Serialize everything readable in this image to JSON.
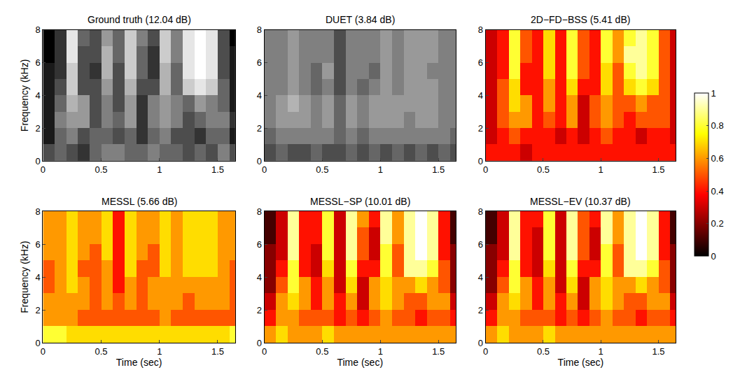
{
  "chart_data": [
    {
      "type": "heatmap",
      "title": "Ground truth (12.04 dB)",
      "ylabel": "Frequency (kHz)",
      "color": "gray",
      "x": [
        0.05,
        0.15,
        0.25,
        0.35,
        0.45,
        0.55,
        0.65,
        0.75,
        0.85,
        0.95,
        1.05,
        1.15,
        1.25,
        1.35,
        1.45,
        1.55,
        1.65
      ],
      "y": [
        0.5,
        1.5,
        2.5,
        3.5,
        4.5,
        5.5,
        6.5,
        7.5
      ],
      "z": [
        [
          0.3,
          0.4,
          0.3,
          0.2,
          0.4,
          0.5,
          0.5,
          0.4,
          0.4,
          0.5,
          0.4,
          0.4,
          0.3,
          0.4,
          0.3,
          0.5,
          0.3
        ],
        [
          0.1,
          0.4,
          0.5,
          0.3,
          0.4,
          0.4,
          0.3,
          0.4,
          0.2,
          0.4,
          0.5,
          0.3,
          0.3,
          0.2,
          0.4,
          0.4,
          0.1
        ],
        [
          0.1,
          0.5,
          0.6,
          0.6,
          0.3,
          0.5,
          0.4,
          0.6,
          0.2,
          0.5,
          0.6,
          0.5,
          0.3,
          0.4,
          0.5,
          0.5,
          0.2
        ],
        [
          0.1,
          0.4,
          0.7,
          0.6,
          0.3,
          0.5,
          0.3,
          0.6,
          0.2,
          0.5,
          0.6,
          0.5,
          0.4,
          0.6,
          0.5,
          0.4,
          0.1
        ],
        [
          0.1,
          0.3,
          0.8,
          0.3,
          0.3,
          0.6,
          0.3,
          0.7,
          0.3,
          0.3,
          0.7,
          0.4,
          0.8,
          0.9,
          0.8,
          0.4,
          0.1
        ],
        [
          0.1,
          0.2,
          0.8,
          0.3,
          0.2,
          0.7,
          0.3,
          0.8,
          0.4,
          0.2,
          0.7,
          0.4,
          0.9,
          1.0,
          0.9,
          0.3,
          0.1
        ],
        [
          0.0,
          0.2,
          0.9,
          0.3,
          0.3,
          0.7,
          0.4,
          0.8,
          0.4,
          0.2,
          0.8,
          0.5,
          0.9,
          1.0,
          0.9,
          0.3,
          0.1
        ],
        [
          0.0,
          0.2,
          0.9,
          0.4,
          0.3,
          0.6,
          0.4,
          0.8,
          0.5,
          0.3,
          0.8,
          0.5,
          0.9,
          1.0,
          0.9,
          0.3,
          0.0
        ]
      ],
      "zlim": [
        0,
        1
      ],
      "xlim": [
        0,
        1.65
      ],
      "xticks": [
        0,
        0.5,
        1,
        1.5
      ],
      "ylim": [
        0,
        8
      ],
      "yticks": [
        0,
        2,
        4,
        6,
        8
      ]
    },
    {
      "type": "heatmap",
      "title": "DUET (3.84 dB)",
      "color": "gray",
      "x": [
        0.05,
        0.15,
        0.25,
        0.35,
        0.45,
        0.55,
        0.65,
        0.75,
        0.85,
        0.95,
        1.05,
        1.15,
        1.25,
        1.35,
        1.45,
        1.55,
        1.65
      ],
      "y": [
        0.5,
        1.5,
        2.5,
        3.5,
        4.5,
        5.5,
        6.5,
        7.5
      ],
      "z": [
        [
          0.3,
          0.4,
          0.3,
          0.3,
          0.4,
          0.3,
          0.3,
          0.4,
          0.3,
          0.4,
          0.3,
          0.4,
          0.3,
          0.4,
          0.3,
          0.4,
          0.3
        ],
        [
          0.4,
          0.5,
          0.5,
          0.5,
          0.5,
          0.5,
          0.4,
          0.5,
          0.4,
          0.5,
          0.5,
          0.5,
          0.5,
          0.5,
          0.5,
          0.5,
          0.4
        ],
        [
          0.5,
          0.6,
          0.6,
          0.6,
          0.5,
          0.6,
          0.4,
          0.6,
          0.5,
          0.6,
          0.6,
          0.6,
          0.5,
          0.6,
          0.6,
          0.5,
          0.5
        ],
        [
          0.5,
          0.6,
          0.7,
          0.6,
          0.5,
          0.6,
          0.4,
          0.6,
          0.5,
          0.6,
          0.6,
          0.6,
          0.6,
          0.6,
          0.6,
          0.5,
          0.5
        ],
        [
          0.5,
          0.5,
          0.6,
          0.5,
          0.4,
          0.5,
          0.3,
          0.5,
          0.4,
          0.5,
          0.6,
          0.5,
          0.6,
          0.6,
          0.6,
          0.5,
          0.5
        ],
        [
          0.5,
          0.5,
          0.6,
          0.5,
          0.4,
          0.6,
          0.3,
          0.5,
          0.5,
          0.4,
          0.6,
          0.5,
          0.6,
          0.6,
          0.5,
          0.5,
          0.5
        ],
        [
          0.5,
          0.5,
          0.6,
          0.5,
          0.5,
          0.5,
          0.3,
          0.5,
          0.5,
          0.5,
          0.6,
          0.5,
          0.6,
          0.6,
          0.6,
          0.5,
          0.5
        ],
        [
          0.5,
          0.5,
          0.6,
          0.5,
          0.5,
          0.5,
          0.3,
          0.5,
          0.5,
          0.5,
          0.6,
          0.5,
          0.6,
          0.6,
          0.6,
          0.5,
          0.5
        ]
      ],
      "zlim": [
        0,
        1
      ],
      "xlim": [
        0,
        1.65
      ],
      "xticks": [
        0,
        0.5,
        1,
        1.5
      ],
      "ylim": [
        0,
        8
      ],
      "yticks": [
        0,
        2,
        4,
        6,
        8
      ]
    },
    {
      "type": "heatmap",
      "title": "2D−FD−BSS (5.41 dB)",
      "color": "hot",
      "x": [
        0.05,
        0.15,
        0.25,
        0.35,
        0.45,
        0.55,
        0.65,
        0.75,
        0.85,
        0.95,
        1.05,
        1.15,
        1.25,
        1.35,
        1.45,
        1.55,
        1.65
      ],
      "y": [
        0.5,
        1.5,
        2.5,
        3.5,
        4.5,
        5.5,
        6.5,
        7.5
      ],
      "z": [
        [
          0.4,
          0.4,
          0.4,
          0.3,
          0.4,
          0.4,
          0.4,
          0.4,
          0.4,
          0.4,
          0.4,
          0.4,
          0.4,
          0.4,
          0.4,
          0.4,
          0.4
        ],
        [
          0.3,
          0.4,
          0.5,
          0.4,
          0.4,
          0.4,
          0.3,
          0.4,
          0.3,
          0.4,
          0.5,
          0.4,
          0.4,
          0.3,
          0.4,
          0.4,
          0.3
        ],
        [
          0.3,
          0.5,
          0.6,
          0.6,
          0.4,
          0.5,
          0.4,
          0.6,
          0.3,
          0.5,
          0.6,
          0.5,
          0.4,
          0.5,
          0.5,
          0.5,
          0.3
        ],
        [
          0.3,
          0.5,
          0.7,
          0.6,
          0.4,
          0.6,
          0.4,
          0.6,
          0.3,
          0.5,
          0.6,
          0.5,
          0.5,
          0.6,
          0.5,
          0.5,
          0.3
        ],
        [
          0.3,
          0.5,
          0.7,
          0.4,
          0.4,
          0.6,
          0.4,
          0.7,
          0.4,
          0.4,
          0.7,
          0.5,
          0.7,
          0.8,
          0.7,
          0.5,
          0.3
        ],
        [
          0.3,
          0.4,
          0.8,
          0.4,
          0.4,
          0.7,
          0.4,
          0.8,
          0.5,
          0.4,
          0.7,
          0.5,
          0.8,
          0.9,
          0.8,
          0.5,
          0.3
        ],
        [
          0.3,
          0.4,
          0.8,
          0.5,
          0.4,
          0.7,
          0.4,
          0.8,
          0.5,
          0.4,
          0.8,
          0.6,
          0.9,
          0.9,
          0.8,
          0.5,
          0.3
        ],
        [
          0.3,
          0.4,
          0.8,
          0.5,
          0.4,
          0.7,
          0.4,
          0.8,
          0.5,
          0.4,
          0.8,
          0.6,
          0.8,
          0.9,
          0.8,
          0.5,
          0.3
        ]
      ],
      "zlim": [
        0,
        1
      ],
      "colorbar_ticks": [
        0,
        0.2,
        0.4,
        0.6,
        0.8,
        1
      ],
      "xlim": [
        0,
        1.65
      ],
      "xticks": [
        0,
        0.5,
        1,
        1.5
      ],
      "ylim": [
        0,
        8
      ],
      "yticks": [
        0,
        2,
        4,
        6,
        8
      ]
    },
    {
      "type": "heatmap",
      "title": "MESSL (5.66 dB)",
      "ylabel": "Frequency (kHz)",
      "xlabel": "Time (sec)",
      "color": "hot",
      "x": [
        0.05,
        0.15,
        0.25,
        0.35,
        0.45,
        0.55,
        0.65,
        0.75,
        0.85,
        0.95,
        1.05,
        1.15,
        1.25,
        1.35,
        1.45,
        1.55,
        1.65
      ],
      "y": [
        0.5,
        1.5,
        2.5,
        3.5,
        4.5,
        5.5,
        6.5,
        7.5
      ],
      "z": [
        [
          0.8,
          0.8,
          0.7,
          0.7,
          0.7,
          0.7,
          0.7,
          0.7,
          0.7,
          0.7,
          0.7,
          0.7,
          0.7,
          0.7,
          0.7,
          0.7,
          0.8
        ],
        [
          0.6,
          0.6,
          0.6,
          0.5,
          0.5,
          0.5,
          0.5,
          0.5,
          0.5,
          0.5,
          0.6,
          0.5,
          0.5,
          0.5,
          0.5,
          0.5,
          0.5
        ],
        [
          0.6,
          0.6,
          0.6,
          0.6,
          0.5,
          0.6,
          0.5,
          0.6,
          0.5,
          0.6,
          0.6,
          0.6,
          0.5,
          0.6,
          0.6,
          0.6,
          0.5
        ],
        [
          0.5,
          0.6,
          0.7,
          0.6,
          0.5,
          0.6,
          0.4,
          0.6,
          0.5,
          0.6,
          0.6,
          0.6,
          0.6,
          0.6,
          0.6,
          0.6,
          0.5
        ],
        [
          0.5,
          0.6,
          0.7,
          0.5,
          0.5,
          0.6,
          0.4,
          0.7,
          0.5,
          0.5,
          0.7,
          0.6,
          0.7,
          0.7,
          0.7,
          0.6,
          0.5
        ],
        [
          0.6,
          0.6,
          0.7,
          0.6,
          0.5,
          0.7,
          0.4,
          0.7,
          0.6,
          0.5,
          0.7,
          0.6,
          0.7,
          0.7,
          0.7,
          0.6,
          0.6
        ],
        [
          0.6,
          0.6,
          0.7,
          0.6,
          0.6,
          0.7,
          0.4,
          0.7,
          0.6,
          0.6,
          0.7,
          0.6,
          0.7,
          0.7,
          0.7,
          0.6,
          0.6
        ],
        [
          0.6,
          0.6,
          0.7,
          0.6,
          0.6,
          0.7,
          0.4,
          0.7,
          0.6,
          0.6,
          0.7,
          0.6,
          0.7,
          0.7,
          0.7,
          0.6,
          0.6
        ]
      ],
      "zlim": [
        0,
        1
      ],
      "xlim": [
        0,
        1.65
      ],
      "xticks": [
        0,
        0.5,
        1,
        1.5
      ],
      "ylim": [
        0,
        8
      ],
      "yticks": [
        0,
        2,
        4,
        6,
        8
      ]
    },
    {
      "type": "heatmap",
      "title": "MESSL−SP (10.01 dB)",
      "xlabel": "Time (sec)",
      "color": "hot",
      "x": [
        0.05,
        0.15,
        0.25,
        0.35,
        0.45,
        0.55,
        0.65,
        0.75,
        0.85,
        0.95,
        1.05,
        1.15,
        1.25,
        1.35,
        1.45,
        1.55,
        1.65
      ],
      "y": [
        0.5,
        1.5,
        2.5,
        3.5,
        4.5,
        5.5,
        6.5,
        7.5
      ],
      "z": [
        [
          0.6,
          0.7,
          0.6,
          0.6,
          0.6,
          0.7,
          0.6,
          0.6,
          0.6,
          0.6,
          0.6,
          0.6,
          0.6,
          0.6,
          0.6,
          0.6,
          0.6
        ],
        [
          0.4,
          0.6,
          0.6,
          0.5,
          0.5,
          0.5,
          0.4,
          0.5,
          0.4,
          0.5,
          0.6,
          0.5,
          0.5,
          0.4,
          0.5,
          0.5,
          0.4
        ],
        [
          0.3,
          0.6,
          0.7,
          0.6,
          0.4,
          0.6,
          0.4,
          0.6,
          0.3,
          0.6,
          0.7,
          0.6,
          0.5,
          0.5,
          0.6,
          0.6,
          0.3
        ],
        [
          0.2,
          0.5,
          0.8,
          0.6,
          0.4,
          0.6,
          0.3,
          0.7,
          0.3,
          0.6,
          0.7,
          0.6,
          0.6,
          0.7,
          0.6,
          0.5,
          0.2
        ],
        [
          0.2,
          0.4,
          0.8,
          0.4,
          0.3,
          0.7,
          0.3,
          0.8,
          0.4,
          0.4,
          0.8,
          0.5,
          0.9,
          0.9,
          0.8,
          0.5,
          0.2
        ],
        [
          0.2,
          0.3,
          0.9,
          0.4,
          0.3,
          0.8,
          0.3,
          0.9,
          0.5,
          0.3,
          0.8,
          0.5,
          0.9,
          1.0,
          0.9,
          0.4,
          0.2
        ],
        [
          0.1,
          0.3,
          0.9,
          0.4,
          0.4,
          0.8,
          0.3,
          0.9,
          0.5,
          0.3,
          0.9,
          0.6,
          0.9,
          1.0,
          0.9,
          0.4,
          0.1
        ],
        [
          0.1,
          0.3,
          0.9,
          0.4,
          0.4,
          0.8,
          0.3,
          0.9,
          0.6,
          0.4,
          0.9,
          0.6,
          0.9,
          1.0,
          0.9,
          0.4,
          0.1
        ]
      ],
      "zlim": [
        0,
        1
      ],
      "xlim": [
        0,
        1.65
      ],
      "xticks": [
        0,
        0.5,
        1,
        1.5
      ],
      "ylim": [
        0,
        8
      ],
      "yticks": [
        0,
        2,
        4,
        6,
        8
      ]
    },
    {
      "type": "heatmap",
      "title": "MESSL−EV (10.37 dB)",
      "xlabel": "Time (sec)",
      "color": "hot",
      "x": [
        0.05,
        0.15,
        0.25,
        0.35,
        0.45,
        0.55,
        0.65,
        0.75,
        0.85,
        0.95,
        1.05,
        1.15,
        1.25,
        1.35,
        1.45,
        1.55,
        1.65
      ],
      "y": [
        0.5,
        1.5,
        2.5,
        3.5,
        4.5,
        5.5,
        6.5,
        7.5
      ],
      "z": [
        [
          0.6,
          0.7,
          0.6,
          0.6,
          0.6,
          0.7,
          0.6,
          0.6,
          0.6,
          0.6,
          0.6,
          0.6,
          0.6,
          0.6,
          0.6,
          0.6,
          0.6
        ],
        [
          0.4,
          0.6,
          0.6,
          0.5,
          0.5,
          0.5,
          0.4,
          0.5,
          0.4,
          0.5,
          0.6,
          0.5,
          0.5,
          0.4,
          0.5,
          0.5,
          0.4
        ],
        [
          0.3,
          0.6,
          0.7,
          0.6,
          0.4,
          0.6,
          0.4,
          0.6,
          0.3,
          0.6,
          0.7,
          0.6,
          0.5,
          0.5,
          0.6,
          0.6,
          0.3
        ],
        [
          0.2,
          0.5,
          0.8,
          0.6,
          0.4,
          0.6,
          0.3,
          0.7,
          0.3,
          0.6,
          0.7,
          0.6,
          0.6,
          0.7,
          0.6,
          0.5,
          0.2
        ],
        [
          0.2,
          0.4,
          0.8,
          0.4,
          0.3,
          0.7,
          0.3,
          0.8,
          0.4,
          0.4,
          0.8,
          0.5,
          0.9,
          0.9,
          0.8,
          0.5,
          0.2
        ],
        [
          0.2,
          0.3,
          0.9,
          0.4,
          0.3,
          0.8,
          0.3,
          0.9,
          0.5,
          0.3,
          0.8,
          0.5,
          0.9,
          1.0,
          0.9,
          0.4,
          0.2
        ],
        [
          0.1,
          0.3,
          0.9,
          0.4,
          0.3,
          0.8,
          0.3,
          0.9,
          0.5,
          0.3,
          0.9,
          0.6,
          0.9,
          1.0,
          0.9,
          0.4,
          0.1
        ],
        [
          0.1,
          0.3,
          0.9,
          0.4,
          0.4,
          0.8,
          0.3,
          0.9,
          0.5,
          0.4,
          0.9,
          0.6,
          0.9,
          1.0,
          0.9,
          0.4,
          0.1
        ]
      ],
      "zlim": [
        0,
        1
      ],
      "xlim": [
        0,
        1.65
      ],
      "xticks": [
        0,
        0.5,
        1,
        1.5
      ],
      "ylim": [
        0,
        8
      ],
      "yticks": [
        0,
        2,
        4,
        6,
        8
      ]
    }
  ]
}
